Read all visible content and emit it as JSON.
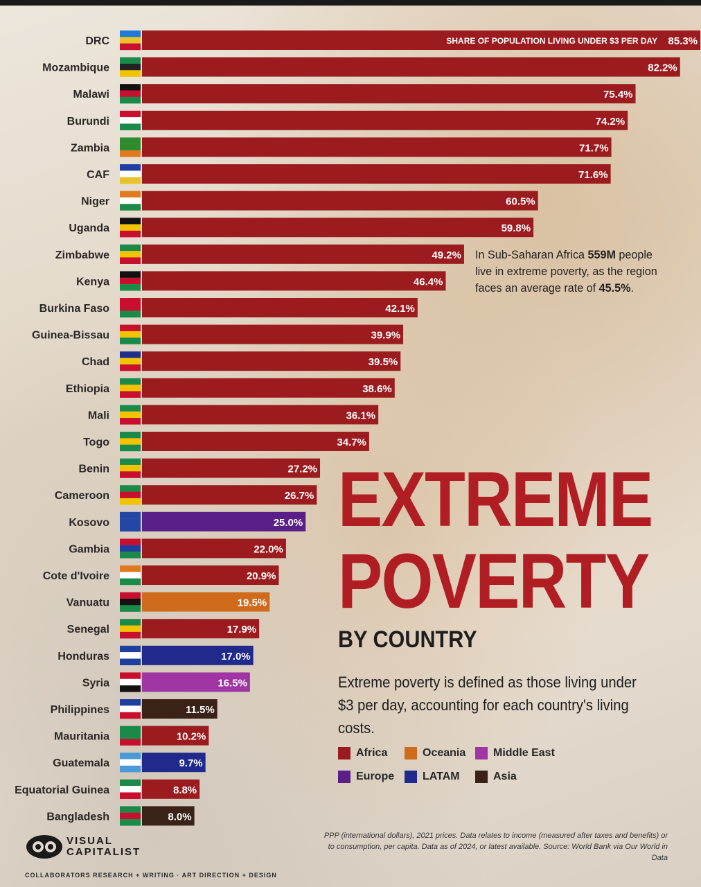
{
  "headline": {
    "line1": "EXTREME",
    "line2": "POVERTY",
    "subtitle": "BY COUNTRY"
  },
  "definition": "Extreme poverty is defined as those living under $3 per day, accounting for each country's living costs.",
  "callout": {
    "prefix": "In Sub-Saharan Africa ",
    "population": "559M",
    "middle": " people live in extreme poverty, as the region faces an average rate of ",
    "rate": "45.5%",
    "suffix": "."
  },
  "colors": {
    "Africa": "#9b1b1f",
    "Oceania": "#d06b1c",
    "Middle East": "#a036a4",
    "Europe": "#5a1f86",
    "LATAM": "#1f2a8c",
    "Asia": "#3a2218"
  },
  "legend": [
    {
      "label": "Africa",
      "color": "#9b1b1f"
    },
    {
      "label": "Oceania",
      "color": "#d06b1c"
    },
    {
      "label": "Middle East",
      "color": "#a036a4"
    },
    {
      "label": "Europe",
      "color": "#5a1f86"
    },
    {
      "label": "LATAM",
      "color": "#1f2a8c"
    },
    {
      "label": "Asia",
      "color": "#3a2218"
    }
  ],
  "footnote": "PPP (international dollars), 2021 prices. Data relates to income (measured after taxes and benefits) or to consumption, per capita. Data as of 2024, or latest available. Source: World Bank via Our World in Data",
  "logo": {
    "line1": "VISUAL",
    "line2": "CAPITALIST"
  },
  "credits": "COLLABORATORS   RESEARCH + WRITING   ·   ART DIRECTION + DESIGN",
  "chart_data": {
    "type": "bar",
    "orientation": "horizontal",
    "title": "Extreme Poverty by Country",
    "value_title": "SHARE OF POPULATION LIVING UNDER $3 PER DAY",
    "unit": "%",
    "xlim": [
      0,
      90
    ],
    "categories": [
      "DRC",
      "Mozambique",
      "Malawi",
      "Burundi",
      "Zambia",
      "CAF",
      "Niger",
      "Uganda",
      "Zimbabwe",
      "Kenya",
      "Burkina Faso",
      "Guinea-Bissau",
      "Chad",
      "Ethiopia",
      "Mali",
      "Togo",
      "Benin",
      "Cameroon",
      "Kosovo",
      "Gambia",
      "Cote d'Ivoire",
      "Vanuatu",
      "Senegal",
      "Honduras",
      "Syria",
      "Philippines",
      "Mauritania",
      "Guatemala",
      "Equatorial Guinea",
      "Bangladesh"
    ],
    "values": [
      85.3,
      82.2,
      75.4,
      74.2,
      71.7,
      71.6,
      60.5,
      59.8,
      49.2,
      46.4,
      42.1,
      39.9,
      39.5,
      38.6,
      36.1,
      34.7,
      27.2,
      26.7,
      25.0,
      22.0,
      20.9,
      19.5,
      17.9,
      17.0,
      16.5,
      11.5,
      10.2,
      9.7,
      8.8,
      8.0
    ],
    "labels": [
      "85.3%",
      "82.2%",
      "75.4%",
      "74.2%",
      "71.7%",
      "71.6%",
      "60.5%",
      "59.8%",
      "49.2%",
      "46.4%",
      "42.1%",
      "39.9%",
      "39.5%",
      "38.6%",
      "36.1%",
      "34.7%",
      "27.2%",
      "26.7%",
      "25.0%",
      "22.0%",
      "20.9%",
      "19.5%",
      "17.9%",
      "17.0%",
      "16.5%",
      "11.5%",
      "10.2%",
      "9.7%",
      "8.8%",
      "8.0%"
    ],
    "regions": [
      "Africa",
      "Africa",
      "Africa",
      "Africa",
      "Africa",
      "Africa",
      "Africa",
      "Africa",
      "Africa",
      "Africa",
      "Africa",
      "Africa",
      "Africa",
      "Africa",
      "Africa",
      "Africa",
      "Africa",
      "Africa",
      "Europe",
      "Africa",
      "Africa",
      "Oceania",
      "Africa",
      "LATAM",
      "Middle East",
      "Asia",
      "Africa",
      "LATAM",
      "Africa",
      "Asia"
    ],
    "flag_icons": [
      "flag-drc-icon",
      "flag-mozambique-icon",
      "flag-malawi-icon",
      "flag-burundi-icon",
      "flag-zambia-icon",
      "flag-caf-icon",
      "flag-niger-icon",
      "flag-uganda-icon",
      "flag-zimbabwe-icon",
      "flag-kenya-icon",
      "flag-burkina-faso-icon",
      "flag-guinea-bissau-icon",
      "flag-chad-icon",
      "flag-ethiopia-icon",
      "flag-mali-icon",
      "flag-togo-icon",
      "flag-benin-icon",
      "flag-cameroon-icon",
      "flag-kosovo-icon",
      "flag-gambia-icon",
      "flag-cote-divoire-icon",
      "flag-vanuatu-icon",
      "flag-senegal-icon",
      "flag-honduras-icon",
      "flag-syria-icon",
      "flag-philippines-icon",
      "flag-mauritania-icon",
      "flag-guatemala-icon",
      "flag-equatorial-guinea-icon",
      "flag-bangladesh-icon"
    ],
    "flag_stripes": [
      [
        "#1e7ad6",
        "#e8c22a",
        "#c8102e"
      ],
      [
        "#1a8a4a",
        "#222222",
        "#f2c300"
      ],
      [
        "#111111",
        "#c8102e",
        "#1a8a4a"
      ],
      [
        "#c8102e",
        "#ffffff",
        "#1a8a4a"
      ],
      [
        "#2e8b2e",
        "#2e8b2e",
        "#e07a1f"
      ],
      [
        "#1f3fa0",
        "#ffffff",
        "#e8c22a"
      ],
      [
        "#e07a1f",
        "#ffffff",
        "#1a8a4a"
      ],
      [
        "#111111",
        "#f2c300",
        "#c8102e"
      ],
      [
        "#1a8a4a",
        "#f2c300",
        "#c8102e"
      ],
      [
        "#111111",
        "#c8102e",
        "#1a8a4a"
      ],
      [
        "#c8102e",
        "#c8102e",
        "#1a8a4a"
      ],
      [
        "#c8102e",
        "#f2c300",
        "#1a8a4a"
      ],
      [
        "#1f2f8a",
        "#f2c300",
        "#c8102e"
      ],
      [
        "#1a8a4a",
        "#f2c300",
        "#c8102e"
      ],
      [
        "#1a8a4a",
        "#f2c300",
        "#c8102e"
      ],
      [
        "#1a8a4a",
        "#f2c300",
        "#1a8a4a"
      ],
      [
        "#1a8a4a",
        "#f2c300",
        "#c8102e"
      ],
      [
        "#1a8a4a",
        "#c8102e",
        "#f2c300"
      ],
      [
        "#2447a6",
        "#2447a6",
        "#2447a6"
      ],
      [
        "#c8102e",
        "#1f3fa0",
        "#1a8a4a"
      ],
      [
        "#e07a1f",
        "#ffffff",
        "#1a8a4a"
      ],
      [
        "#c8102e",
        "#111111",
        "#1a8a4a"
      ],
      [
        "#1a8a4a",
        "#f2c300",
        "#c8102e"
      ],
      [
        "#1f3fa0",
        "#ffffff",
        "#1f3fa0"
      ],
      [
        "#c8102e",
        "#ffffff",
        "#111111"
      ],
      [
        "#1f3fa0",
        "#ffffff",
        "#c8102e"
      ],
      [
        "#1a8a4a",
        "#1a8a4a",
        "#c8102e"
      ],
      [
        "#4a9ad6",
        "#ffffff",
        "#4a9ad6"
      ],
      [
        "#1a8a4a",
        "#ffffff",
        "#c8102e"
      ],
      [
        "#1a8a4a",
        "#c8102e",
        "#1a8a4a"
      ]
    ]
  }
}
